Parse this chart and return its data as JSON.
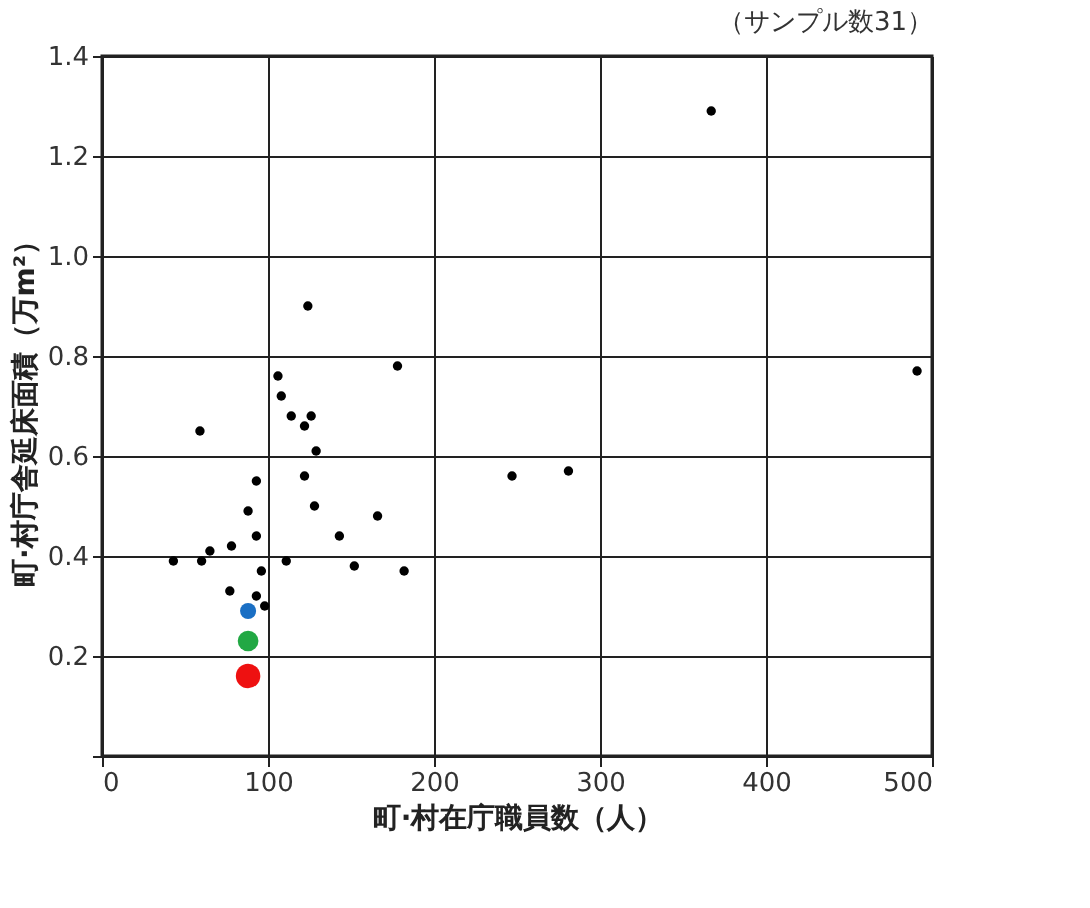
{
  "chart_data": {
    "type": "scatter",
    "xlabel": "町·村在庁職員数（人）",
    "ylabel": "町·村庁舎延床面積（万m²）",
    "annotations": [
      "（サンプル数31）"
    ],
    "xlim": [
      0,
      500
    ],
    "xticks": [
      0,
      100,
      200,
      300,
      400,
      500
    ],
    "ylim": [
      0,
      1.4
    ],
    "yticks": [
      {
        "value": 0,
        "label": null
      },
      {
        "value": 0.2,
        "label": "0.2"
      },
      {
        "value": 0.4,
        "label": "0.4"
      },
      {
        "value": 0.6,
        "label": "0.6"
      },
      {
        "value": 0.8,
        "label": "0.8"
      },
      {
        "value": 1.0,
        "label": "1.0"
      },
      {
        "value": 1.2,
        "label": "1.2"
      },
      {
        "value": 1.4,
        "label": "1.4"
      }
    ],
    "grid": true,
    "marker": "circle",
    "legend": false,
    "series": [
      {
        "color": "#000000",
        "x": [
          124,
          178,
          106,
          108,
          114,
          126,
          122,
          59,
          129,
          93,
          122,
          128,
          88,
          166,
          93,
          143,
          78,
          65,
          60,
          43,
          111,
          152,
          182,
          96,
          77,
          93,
          98,
          247,
          281,
          367,
          491
        ],
        "values": [
          0.9,
          0.78,
          0.76,
          0.72,
          0.68,
          0.68,
          0.66,
          0.65,
          0.61,
          0.55,
          0.56,
          0.5,
          0.49,
          0.48,
          0.44,
          0.44,
          0.42,
          0.41,
          0.39,
          0.39,
          0.39,
          0.38,
          0.37,
          0.37,
          0.33,
          0.32,
          0.3,
          0.56,
          0.57,
          1.29,
          0.77
        ]
      },
      {
        "color": "#1a6fc4",
        "x": [
          88
        ],
        "values": [
          0.29
        ]
      },
      {
        "color": "#22a844",
        "x": [
          88
        ],
        "values": [
          0.23
        ]
      },
      {
        "color": "#ee1111",
        "x": [
          88
        ],
        "values": [
          0.16
        ]
      }
    ]
  }
}
